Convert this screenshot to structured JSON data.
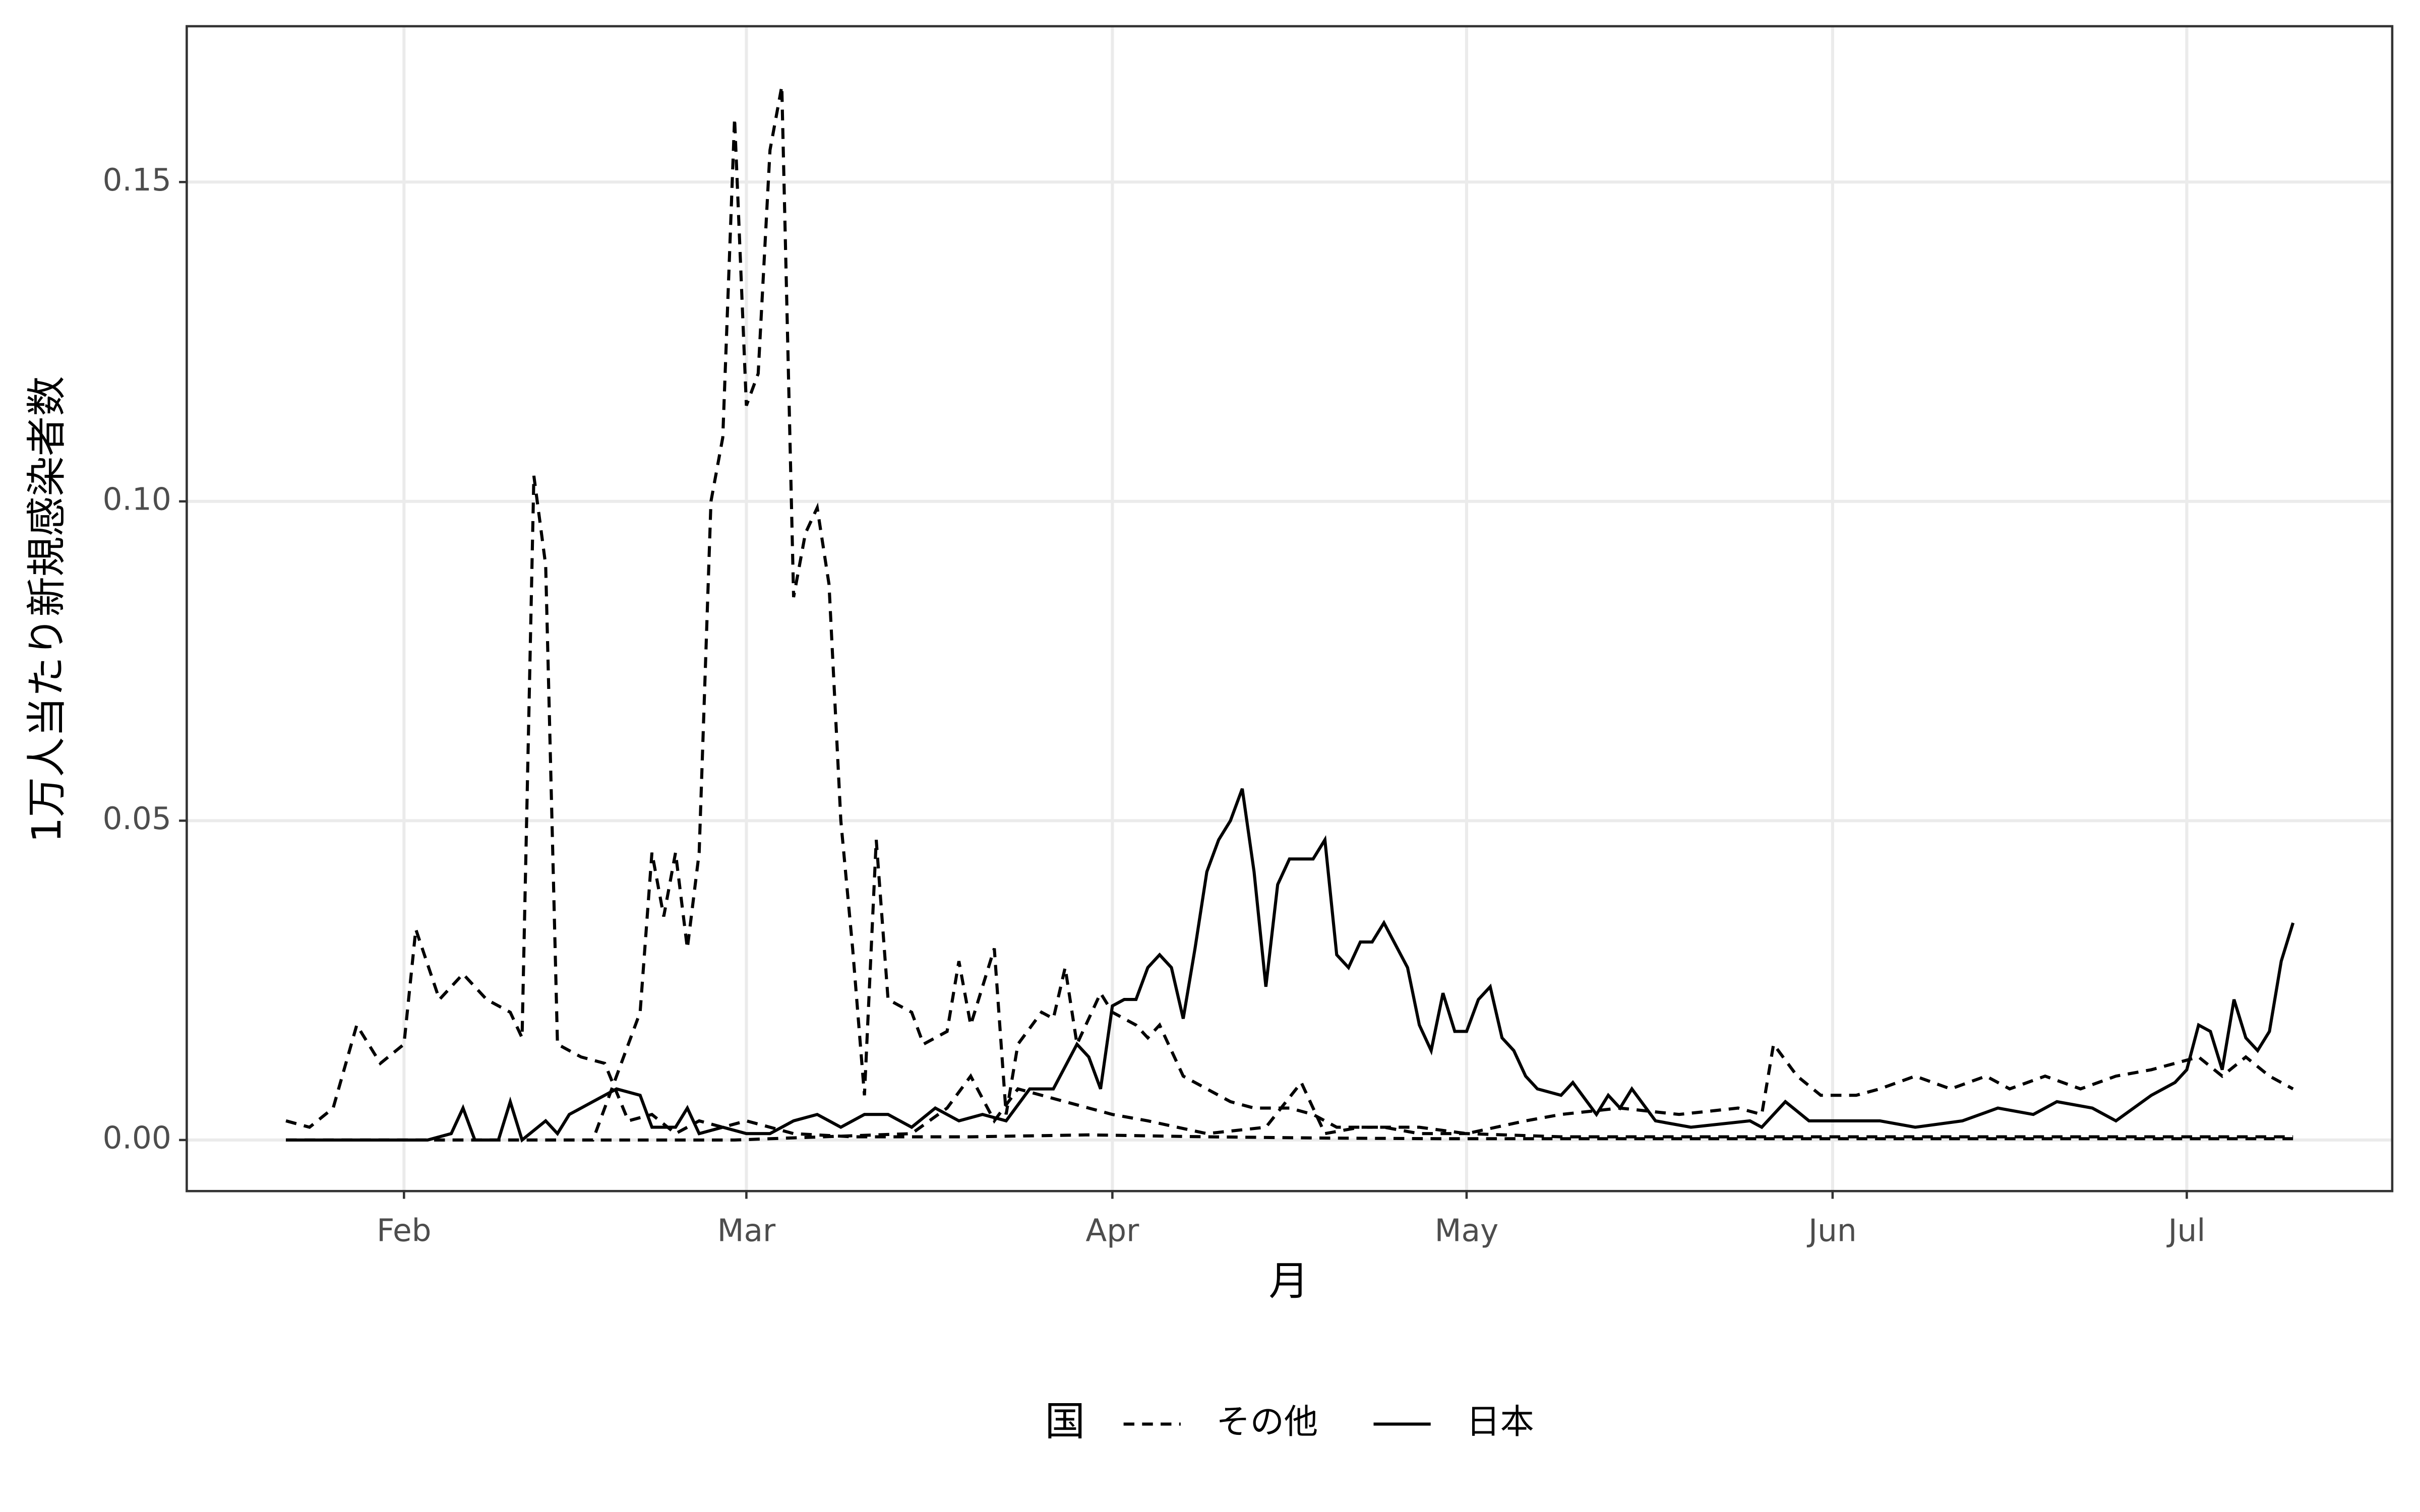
{
  "chart_data": {
    "type": "line",
    "xlabel": "月",
    "ylabel": "1万人当たり新規感染者数",
    "legend_title": "国",
    "legend": "bottom",
    "grid": true,
    "xlim": [
      13.6,
      200.4
    ],
    "ylim": [
      -0.008,
      0.1744
    ],
    "xticks": [
      {
        "value": 32,
        "label": "Feb"
      },
      {
        "value": 61,
        "label": "Mar"
      },
      {
        "value": 92,
        "label": "Apr"
      },
      {
        "value": 122,
        "label": "May"
      },
      {
        "value": 153,
        "label": "Jun"
      },
      {
        "value": 183,
        "label": "Jul"
      }
    ],
    "yticks": [
      {
        "value": 0,
        "label": "0.00"
      },
      {
        "value": 0.05,
        "label": "0.05"
      },
      {
        "value": 0.1,
        "label": "0.10"
      },
      {
        "value": 0.15,
        "label": "0.15"
      }
    ],
    "series": [
      {
        "name": "その他",
        "color": "#000000",
        "dash": true,
        "x": [
          22,
          24,
          26,
          28,
          30,
          32,
          33,
          35,
          37,
          39,
          41,
          42,
          43,
          44,
          45,
          47,
          49,
          51,
          53,
          55,
          57,
          59,
          61,
          65,
          70,
          80,
          90,
          100,
          110,
          120,
          140,
          160,
          180,
          192
        ],
        "values": [
          0.003,
          0.002,
          0.005,
          0.018,
          0.012,
          0.015,
          0.033,
          0.022,
          0.026,
          0.022,
          0.02,
          0.016,
          0.104,
          0.09,
          0.015,
          0.013,
          0.012,
          0.003,
          0.004,
          0.001,
          0.003,
          0.002,
          0.003,
          0.001,
          0.0005,
          0.0005,
          0.0008,
          0.0005,
          0.0003,
          0.0002,
          0.0002,
          0.0002,
          0.0002,
          0.0002
        ]
      },
      {
        "name": "その他",
        "color": "#000000",
        "dash": true,
        "x": [
          22,
          40,
          48,
          50,
          52,
          53,
          54,
          55,
          56,
          57,
          58,
          59,
          60,
          61,
          62,
          63,
          64,
          65,
          66,
          67,
          68,
          69,
          70,
          71,
          72,
          73,
          75,
          76,
          78,
          79,
          80,
          82,
          83,
          84,
          86,
          87,
          88,
          89,
          91,
          92,
          94,
          95,
          96,
          98,
          100,
          102,
          104,
          107,
          109,
          111,
          115,
          118,
          122,
          130,
          150,
          170,
          192
        ],
        "values": [
          0,
          0,
          0,
          0.01,
          0.02,
          0.045,
          0.035,
          0.045,
          0.03,
          0.045,
          0.1,
          0.11,
          0.16,
          0.115,
          0.12,
          0.155,
          0.165,
          0.085,
          0.095,
          0.099,
          0.087,
          0.05,
          0.03,
          0.007,
          0.047,
          0.022,
          0.02,
          0.015,
          0.017,
          0.028,
          0.018,
          0.03,
          0.004,
          0.015,
          0.02,
          0.019,
          0.027,
          0.015,
          0.023,
          0.02,
          0.018,
          0.016,
          0.018,
          0.01,
          0.008,
          0.006,
          0.005,
          0.005,
          0.004,
          0.002,
          0.002,
          0.001,
          0.001,
          0.0005,
          0.0005,
          0.0005,
          0.0005
        ]
      },
      {
        "name": "その他",
        "color": "#000000",
        "dash": true,
        "x": [
          22,
          60,
          75,
          78,
          80,
          82,
          84,
          86,
          88,
          90,
          92,
          95,
          100,
          105,
          108,
          110,
          113,
          118,
          122,
          127,
          130,
          135,
          140,
          145,
          147,
          148,
          150,
          152,
          155,
          157,
          160,
          163,
          166,
          168,
          171,
          174,
          177,
          180,
          182,
          184,
          186,
          188,
          190,
          192
        ],
        "values": [
          0,
          0,
          0.001,
          0.005,
          0.01,
          0.003,
          0.008,
          0.007,
          0.006,
          0.005,
          0.004,
          0.003,
          0.001,
          0.002,
          0.009,
          0.001,
          0.002,
          0.002,
          0.001,
          0.003,
          0.004,
          0.005,
          0.004,
          0.005,
          0.004,
          0.015,
          0.01,
          0.007,
          0.007,
          0.008,
          0.01,
          0.008,
          0.01,
          0.008,
          0.01,
          0.008,
          0.01,
          0.011,
          0.012,
          0.013,
          0.01,
          0.013,
          0.01,
          0.008
        ]
      },
      {
        "name": "日本",
        "color": "#000000",
        "dash": false,
        "x": [
          22,
          26,
          30,
          34,
          36,
          37,
          38,
          40,
          41,
          42,
          44,
          45,
          46,
          48,
          50,
          52,
          53,
          55,
          56,
          57,
          59,
          61,
          63,
          65,
          67,
          69,
          71,
          73,
          75,
          77,
          79,
          81,
          83,
          85,
          87,
          89,
          90,
          91,
          92,
          93,
          94,
          95,
          96,
          97,
          98,
          99,
          100,
          101,
          102,
          103,
          104,
          105,
          106,
          107,
          109,
          110,
          111,
          112,
          113,
          114,
          115,
          117,
          118,
          119,
          120,
          121,
          122,
          123,
          124,
          125,
          126,
          127,
          128,
          130,
          131,
          133,
          134,
          135,
          136,
          138,
          141,
          146,
          147,
          149,
          151,
          153,
          157,
          160,
          164,
          167,
          170,
          172,
          175,
          177,
          180,
          182,
          183,
          184,
          185,
          186,
          187,
          188,
          189,
          190,
          191,
          192
        ],
        "values": [
          0,
          0,
          0,
          0,
          0.001,
          0.005,
          0,
          0,
          0.006,
          0,
          0.003,
          0.001,
          0.004,
          0.006,
          0.008,
          0.007,
          0.002,
          0.002,
          0.005,
          0.001,
          0.002,
          0.001,
          0.001,
          0.003,
          0.004,
          0.002,
          0.004,
          0.004,
          0.002,
          0.005,
          0.003,
          0.004,
          0.003,
          0.008,
          0.008,
          0.015,
          0.013,
          0.008,
          0.021,
          0.022,
          0.022,
          0.027,
          0.029,
          0.027,
          0.019,
          0.03,
          0.042,
          0.047,
          0.05,
          0.055,
          0.042,
          0.024,
          0.04,
          0.044,
          0.044,
          0.047,
          0.029,
          0.027,
          0.031,
          0.031,
          0.034,
          0.027,
          0.018,
          0.014,
          0.023,
          0.017,
          0.017,
          0.022,
          0.024,
          0.016,
          0.014,
          0.01,
          0.008,
          0.007,
          0.009,
          0.004,
          0.007,
          0.005,
          0.008,
          0.003,
          0.002,
          0.003,
          0.002,
          0.006,
          0.003,
          0.003,
          0.003,
          0.002,
          0.003,
          0.005,
          0.004,
          0.006,
          0.005,
          0.003,
          0.007,
          0.009,
          0.011,
          0.018,
          0.017,
          0.011,
          0.022,
          0.016,
          0.014,
          0.017,
          0.028,
          0.034
        ]
      }
    ]
  }
}
